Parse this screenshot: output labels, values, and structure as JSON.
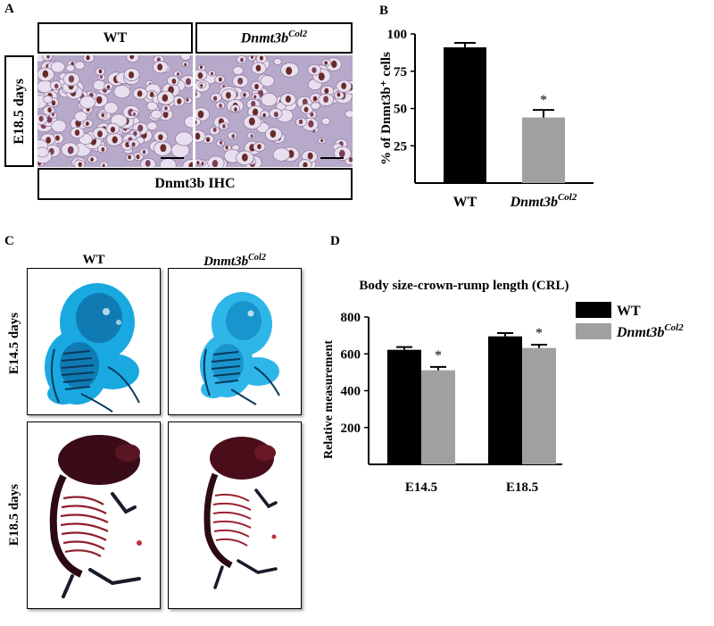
{
  "panels": {
    "A": {
      "label": "A",
      "col_wt": "WT",
      "col_mut_base": "Dnmt3b",
      "col_mut_sup": "Col2",
      "row_label": "E18.5 days",
      "bottom_label": "Dnmt3b  IHC"
    },
    "B": {
      "label": "B"
    },
    "C": {
      "label": "C",
      "col_wt": "WT",
      "col_mut_base": "Dnmt3b",
      "col_mut_sup": "Col2",
      "row1": "E14.5 days",
      "row2": "E18.5 days"
    },
    "D": {
      "label": "D"
    }
  },
  "chart_data": [
    {
      "type": "bar",
      "ylabel": "% of Dnmt3b⁺ cells",
      "categories": [
        "WT",
        "Dnmt3b"
      ],
      "category_sup": [
        "",
        "Col2"
      ],
      "values": [
        91,
        44
      ],
      "errors": [
        3,
        5
      ],
      "ylim": [
        0,
        100
      ],
      "yticks": [
        25,
        50,
        75,
        100
      ],
      "colors": [
        "#000000",
        "#a0a0a0"
      ],
      "annotations": [
        "",
        "*"
      ]
    },
    {
      "type": "bar",
      "title": "Body size-crown-rump  length (CRL)",
      "ylabel": "Relative measurement",
      "categories": [
        "E14.5",
        "E18.5"
      ],
      "series": [
        {
          "name": "WT",
          "values": [
            622,
            695
          ],
          "errors": [
            15,
            18
          ],
          "color": "#000000",
          "annotations": [
            "",
            ""
          ]
        },
        {
          "name": "Dnmt3b",
          "name_sup": "Col2",
          "values": [
            511,
            632
          ],
          "errors": [
            18,
            18
          ],
          "color": "#a0a0a0",
          "annotations": [
            "*",
            "*"
          ]
        }
      ],
      "ylim": [
        0,
        800
      ],
      "yticks": [
        200,
        400,
        600,
        800
      ],
      "legend": "top-right"
    }
  ]
}
